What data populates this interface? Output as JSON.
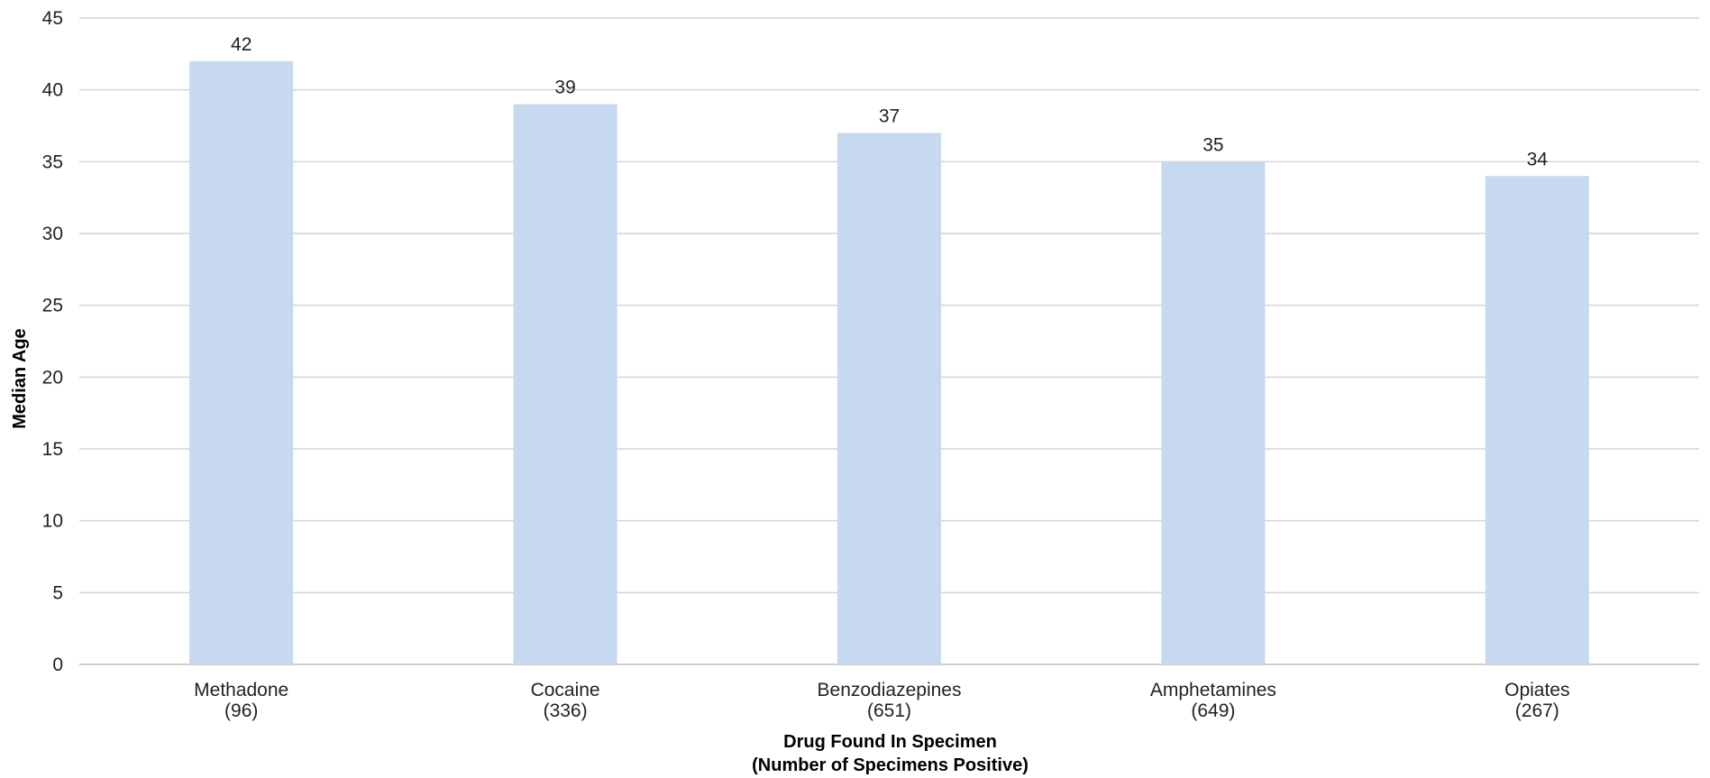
{
  "chart_data": {
    "type": "bar",
    "categories": [
      "Methadone",
      "Cocaine",
      "Benzodiazepines",
      "Amphetamines",
      "Opiates"
    ],
    "category_sublabels": [
      "(96)",
      "(336)",
      "(651)",
      "(649)",
      "(267)"
    ],
    "values": [
      42,
      39,
      37,
      35,
      34
    ],
    "data_labels": [
      "42",
      "39",
      "37",
      "35",
      "34"
    ],
    "ylabel": "Median Age",
    "xlabel_lines": [
      "Drug Found In Specimen",
      "(Number of Specimens Positive)"
    ],
    "ylim": [
      0,
      45
    ],
    "yticks": [
      0,
      5,
      10,
      15,
      20,
      25,
      30,
      35,
      40,
      45
    ],
    "grid": true,
    "legend": "none",
    "bar_color": "#c6d9f0"
  }
}
